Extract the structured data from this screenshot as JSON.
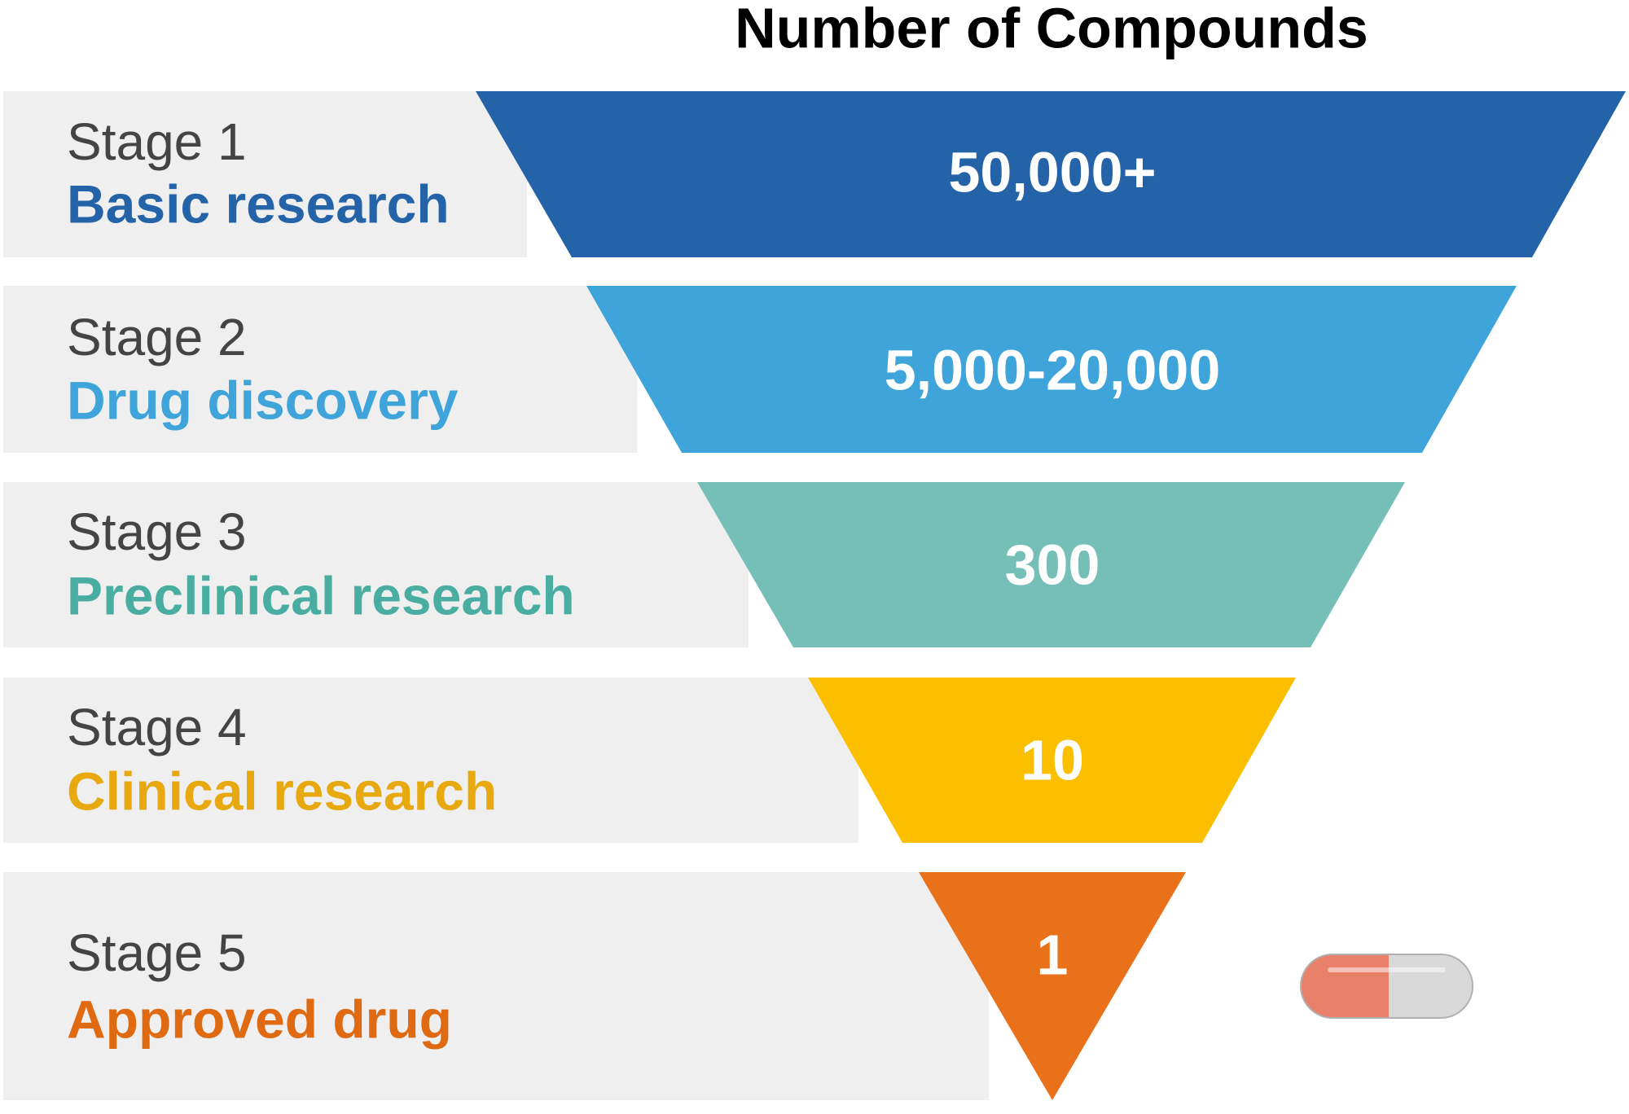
{
  "title": "Number of Compounds",
  "stages": [
    {
      "stage": "Stage 1",
      "name": "Basic research",
      "count": "50,000+"
    },
    {
      "stage": "Stage 2",
      "name": "Drug discovery",
      "count": "5,000-20,000"
    },
    {
      "stage": "Stage 3",
      "name": "Preclinical research",
      "count": "300"
    },
    {
      "stage": "Stage 4",
      "name": "Clinical research",
      "count": "10"
    },
    {
      "stage": "Stage 5",
      "name": "Approved drug",
      "count": "1"
    }
  ]
}
